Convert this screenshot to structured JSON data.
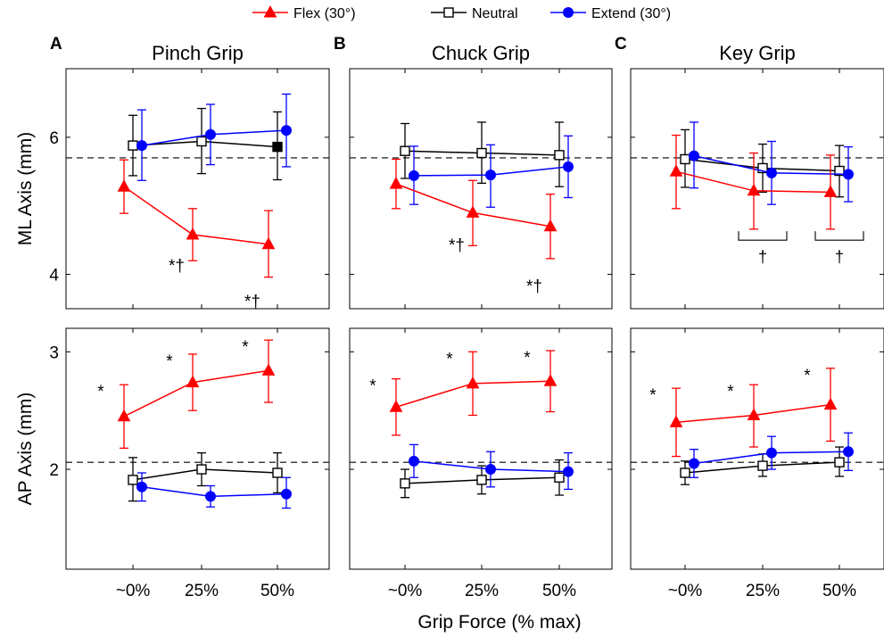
{
  "legend": {
    "placement": "top-center",
    "entries": [
      {
        "label": "Flex (30°)",
        "color": "#ff0000",
        "marker": "triangle"
      },
      {
        "label": "Neutral",
        "color": "#000000",
        "marker": "open-square"
      },
      {
        "label": "Extend (30°)",
        "color": "#0000ff",
        "marker": "circle"
      }
    ]
  },
  "xlabel": "Grip Force (% max)",
  "chart_data": [
    {
      "type": "line",
      "panel": "A",
      "title": "Pinch Grip",
      "ylabel": "ML Axis (mm)",
      "ylim": [
        3.5,
        7.0
      ],
      "yticks": [
        4,
        6
      ],
      "reference_y": 5.7,
      "categories": [
        "~0%",
        "25%",
        "50%"
      ],
      "series": [
        {
          "name": "Flex (30°)",
          "values": [
            5.28,
            4.58,
            4.44
          ],
          "err_low": [
            4.89,
            4.2,
            3.96
          ],
          "err_high": [
            5.67,
            4.96,
            4.93
          ]
        },
        {
          "name": "Neutral",
          "values": [
            5.88,
            5.94,
            5.86
          ],
          "err_low": [
            5.44,
            5.47,
            5.38
          ],
          "err_high": [
            6.32,
            6.42,
            6.37
          ]
        },
        {
          "name": "Extend (30°)",
          "values": [
            5.88,
            6.04,
            6.1
          ],
          "err_low": [
            5.37,
            5.6,
            5.57
          ],
          "err_high": [
            6.4,
            6.48,
            6.63
          ]
        }
      ],
      "annotations": [
        {
          "text": "*†",
          "category": 1,
          "y": 4.28
        },
        {
          "text": "*†",
          "category": 2,
          "y": 3.76
        }
      ]
    },
    {
      "type": "line",
      "panel": "B",
      "title": "Chuck Grip",
      "ylabel": "",
      "ylim": [
        3.5,
        7.0
      ],
      "yticks": [
        4,
        6
      ],
      "reference_y": 5.7,
      "categories": [
        "~0%",
        "25%",
        "50%"
      ],
      "series": [
        {
          "name": "Flex (30°)",
          "values": [
            5.32,
            4.9,
            4.7
          ],
          "err_low": [
            4.96,
            4.42,
            4.23
          ],
          "err_high": [
            5.68,
            5.37,
            5.17
          ]
        },
        {
          "name": "Neutral",
          "values": [
            5.8,
            5.77,
            5.74
          ],
          "err_low": [
            5.4,
            5.33,
            5.28
          ],
          "err_high": [
            6.2,
            6.22,
            6.22
          ]
        },
        {
          "name": "Extend (30°)",
          "values": [
            5.44,
            5.45,
            5.57
          ],
          "err_low": [
            5.02,
            4.98,
            5.12
          ],
          "err_high": [
            5.87,
            5.89,
            6.02
          ]
        }
      ],
      "annotations": [
        {
          "text": "*†",
          "category": 1,
          "y": 4.58
        },
        {
          "text": "*†",
          "category": 2,
          "y": 3.98
        }
      ]
    },
    {
      "type": "line",
      "panel": "C",
      "title": "Key Grip",
      "ylabel": "",
      "ylim": [
        3.5,
        7.0
      ],
      "yticks": [
        4,
        6
      ],
      "reference_y": 5.7,
      "categories": [
        "~0%",
        "25%",
        "50%"
      ],
      "series": [
        {
          "name": "Flex (30°)",
          "values": [
            5.5,
            5.22,
            5.2
          ],
          "err_low": [
            4.96,
            4.66,
            4.66
          ],
          "err_high": [
            6.03,
            5.77,
            5.74
          ]
        },
        {
          "name": "Neutral",
          "values": [
            5.68,
            5.55,
            5.51
          ],
          "err_low": [
            5.27,
            5.2,
            5.13
          ],
          "err_high": [
            6.11,
            5.9,
            5.88
          ]
        },
        {
          "name": "Extend (30°)",
          "values": [
            5.73,
            5.48,
            5.46
          ],
          "err_low": [
            5.26,
            5.02,
            5.06
          ],
          "err_high": [
            6.22,
            5.94,
            5.86
          ]
        }
      ],
      "annotations": [
        {
          "text": "†",
          "category": 1,
          "y": 4.5,
          "bracket": true
        },
        {
          "text": "†",
          "category": 2,
          "y": 4.5,
          "bracket": true
        }
      ]
    },
    {
      "type": "line",
      "panel": "A",
      "title": "",
      "ylabel": "AP Axis (mm)",
      "ylim": [
        1.15,
        3.2
      ],
      "yticks": [
        2,
        3
      ],
      "reference_y": 2.06,
      "categories": [
        "~0%",
        "25%",
        "50%"
      ],
      "series": [
        {
          "name": "Flex (30°)",
          "values": [
            2.45,
            2.74,
            2.84
          ],
          "err_low": [
            2.18,
            2.5,
            2.57
          ],
          "err_high": [
            2.72,
            2.98,
            3.1
          ]
        },
        {
          "name": "Neutral",
          "values": [
            1.91,
            2.0,
            1.97
          ],
          "err_low": [
            1.73,
            1.86,
            1.8
          ],
          "err_high": [
            2.1,
            2.14,
            2.14
          ]
        },
        {
          "name": "Extend (30°)",
          "values": [
            1.85,
            1.77,
            1.79
          ],
          "err_low": [
            1.73,
            1.68,
            1.67
          ],
          "err_high": [
            1.97,
            1.86,
            1.93
          ]
        }
      ],
      "annotations": [
        {
          "text": "*",
          "category": 0,
          "y": 2.72
        },
        {
          "text": "*",
          "category": 1,
          "y": 2.98
        },
        {
          "text": "*",
          "category": 2,
          "y": 3.1
        }
      ]
    },
    {
      "type": "line",
      "panel": "B",
      "title": "",
      "ylabel": "",
      "ylim": [
        1.15,
        3.2
      ],
      "yticks": [
        2,
        3
      ],
      "reference_y": 2.06,
      "categories": [
        "~0%",
        "25%",
        "50%"
      ],
      "series": [
        {
          "name": "Flex (30°)",
          "values": [
            2.53,
            2.73,
            2.75
          ],
          "err_low": [
            2.29,
            2.46,
            2.49
          ],
          "err_high": [
            2.77,
            3.0,
            3.01
          ]
        },
        {
          "name": "Neutral",
          "values": [
            1.88,
            1.91,
            1.93
          ],
          "err_low": [
            1.76,
            1.79,
            1.78
          ],
          "err_high": [
            2.0,
            2.03,
            2.08
          ]
        },
        {
          "name": "Extend (30°)",
          "values": [
            2.07,
            2.0,
            1.98
          ],
          "err_low": [
            1.93,
            1.85,
            1.83
          ],
          "err_high": [
            2.21,
            2.15,
            2.14
          ]
        }
      ],
      "annotations": [
        {
          "text": "*",
          "category": 0,
          "y": 2.77
        },
        {
          "text": "*",
          "category": 1,
          "y": 3.0
        },
        {
          "text": "*",
          "category": 2,
          "y": 3.01
        }
      ]
    },
    {
      "type": "line",
      "panel": "C",
      "title": "",
      "ylabel": "",
      "ylim": [
        1.15,
        3.2
      ],
      "yticks": [
        2,
        3
      ],
      "reference_y": 2.06,
      "categories": [
        "~0%",
        "25%",
        "50%"
      ],
      "series": [
        {
          "name": "Flex (30°)",
          "values": [
            2.4,
            2.46,
            2.55
          ],
          "err_low": [
            2.11,
            2.19,
            2.24
          ],
          "err_high": [
            2.69,
            2.72,
            2.86
          ]
        },
        {
          "name": "Neutral",
          "values": [
            1.97,
            2.03,
            2.06
          ],
          "err_low": [
            1.87,
            1.94,
            1.94
          ],
          "err_high": [
            2.07,
            2.13,
            2.19
          ]
        },
        {
          "name": "Extend (30°)",
          "values": [
            2.05,
            2.14,
            2.15
          ],
          "err_low": [
            1.93,
            2.0,
            1.99
          ],
          "err_high": [
            2.17,
            2.28,
            2.31
          ]
        }
      ],
      "annotations": [
        {
          "text": "*",
          "category": 0,
          "y": 2.69
        },
        {
          "text": "*",
          "category": 1,
          "y": 2.72
        },
        {
          "text": "*",
          "category": 2,
          "y": 2.86
        }
      ]
    }
  ]
}
